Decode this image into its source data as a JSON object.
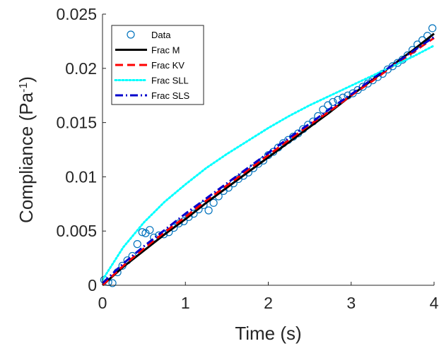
{
  "chart_data": {
    "type": "line",
    "xlabel": "Time (s)",
    "ylabel_main": "Compliance (Pa",
    "ylabel_sup": "-1",
    "ylabel_close": ")",
    "xlim": [
      0,
      4
    ],
    "ylim": [
      0,
      0.025
    ],
    "xticks": [
      0,
      1,
      2,
      3,
      4
    ],
    "xtick_labels": [
      "0",
      "1",
      "2",
      "3",
      "4"
    ],
    "yticks": [
      0,
      0.005,
      0.01,
      0.015,
      0.02,
      0.025
    ],
    "ytick_labels": [
      "0",
      "0.005",
      "0.01",
      "0.015",
      "0.02",
      "0.025"
    ],
    "grid": false,
    "legend_position": "top-left",
    "legend": [
      {
        "label": "Data",
        "style": "marker-circle",
        "color": "#0072BD"
      },
      {
        "label": "Frac M",
        "style": "solid",
        "color": "#000000"
      },
      {
        "label": "Frac KV",
        "style": "dashed",
        "color": "#FF0000"
      },
      {
        "label": "Frac SLL",
        "style": "dotted",
        "color": "#00FFFF"
      },
      {
        "label": "Frac SLS",
        "style": "dashdot",
        "color": "#0000CC"
      }
    ],
    "series": [
      {
        "name": "Data",
        "type": "scatter",
        "color": "#0072BD",
        "x": [
          0.02,
          0.07,
          0.12,
          0.18,
          0.24,
          0.3,
          0.36,
          0.42,
          0.48,
          0.52,
          0.57,
          0.62,
          0.68,
          0.74,
          0.8,
          0.86,
          0.92,
          0.98,
          1.04,
          1.1,
          1.16,
          1.22,
          1.28,
          1.34,
          1.4,
          1.46,
          1.52,
          1.58,
          1.64,
          1.7,
          1.76,
          1.82,
          1.88,
          1.94,
          2.0,
          2.06,
          2.12,
          2.18,
          2.24,
          2.3,
          2.36,
          2.42,
          2.48,
          2.54,
          2.6,
          2.66,
          2.72,
          2.78,
          2.84,
          2.9,
          2.96,
          3.02,
          3.08,
          3.14,
          3.2,
          3.26,
          3.32,
          3.38,
          3.44,
          3.5,
          3.56,
          3.62,
          3.68,
          3.74,
          3.8,
          3.86,
          3.92,
          3.98
        ],
        "values": [
          0.0005,
          0.0003,
          0.0002,
          0.0012,
          0.0018,
          0.0023,
          0.0027,
          0.0038,
          0.0049,
          0.0048,
          0.0051,
          0.0044,
          0.0046,
          0.0047,
          0.0049,
          0.0053,
          0.0057,
          0.0059,
          0.0063,
          0.0066,
          0.007,
          0.0074,
          0.0069,
          0.0076,
          0.0082,
          0.0087,
          0.009,
          0.0094,
          0.0098,
          0.0101,
          0.0104,
          0.0108,
          0.0112,
          0.0115,
          0.012,
          0.0123,
          0.0127,
          0.0131,
          0.0134,
          0.0137,
          0.014,
          0.0144,
          0.0148,
          0.0151,
          0.0156,
          0.0162,
          0.0166,
          0.0169,
          0.0171,
          0.0173,
          0.0175,
          0.0177,
          0.018,
          0.0183,
          0.0186,
          0.0189,
          0.0192,
          0.0195,
          0.0199,
          0.0202,
          0.0205,
          0.0208,
          0.0212,
          0.0217,
          0.0222,
          0.0226,
          0.023,
          0.0237
        ]
      },
      {
        "name": "Frac M",
        "type": "line",
        "color": "#000000",
        "dash": "solid",
        "x": [
          0.0,
          0.25,
          0.5,
          0.75,
          1.0,
          1.25,
          1.5,
          1.75,
          2.0,
          2.25,
          2.5,
          2.75,
          3.0,
          3.25,
          3.5,
          3.75,
          4.0
        ],
        "values": [
          0.0,
          0.0017,
          0.0032,
          0.0047,
          0.0061,
          0.0076,
          0.009,
          0.0104,
          0.0118,
          0.0132,
          0.0146,
          0.016,
          0.0175,
          0.0189,
          0.0203,
          0.0217,
          0.0232
        ]
      },
      {
        "name": "Frac KV",
        "type": "line",
        "color": "#FF0000",
        "dash": "dashed",
        "x": [
          0.0,
          0.25,
          0.5,
          0.75,
          1.0,
          1.25,
          1.5,
          1.75,
          2.0,
          2.25,
          2.5,
          2.75,
          3.0,
          3.25,
          3.5,
          3.75,
          4.0
        ],
        "values": [
          0.0,
          0.0018,
          0.0034,
          0.0049,
          0.0063,
          0.0078,
          0.0092,
          0.0106,
          0.012,
          0.0134,
          0.0148,
          0.0161,
          0.0175,
          0.0188,
          0.0202,
          0.0215,
          0.0228
        ]
      },
      {
        "name": "Frac SLL",
        "type": "line",
        "color": "#00FFFF",
        "dash": "dotted",
        "x": [
          0.0,
          0.25,
          0.5,
          0.75,
          1.0,
          1.25,
          1.5,
          1.75,
          2.0,
          2.25,
          2.5,
          2.75,
          3.0,
          3.25,
          3.5,
          3.75,
          4.0
        ],
        "values": [
          0.0005,
          0.0035,
          0.0058,
          0.0077,
          0.0093,
          0.0108,
          0.0121,
          0.0133,
          0.0145,
          0.0156,
          0.0166,
          0.0175,
          0.0184,
          0.0193,
          0.0202,
          0.0211,
          0.0221
        ]
      },
      {
        "name": "Frac SLS",
        "type": "line",
        "color": "#0000CC",
        "dash": "dashdot",
        "x": [
          0.0,
          0.25,
          0.5,
          0.75,
          1.0,
          1.25,
          1.5,
          1.75,
          2.0,
          2.25,
          2.5,
          2.75,
          3.0,
          3.25,
          3.5,
          3.75,
          4.0
        ],
        "values": [
          0.0002,
          0.002,
          0.0036,
          0.0051,
          0.0066,
          0.008,
          0.0094,
          0.0108,
          0.0122,
          0.0136,
          0.0149,
          0.0163,
          0.0176,
          0.019,
          0.0203,
          0.0216,
          0.0229
        ]
      }
    ]
  }
}
